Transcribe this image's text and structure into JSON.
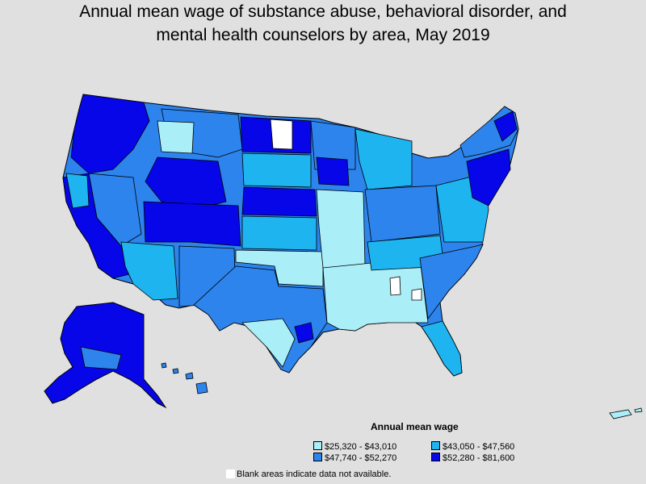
{
  "title_line1": "Annual mean wage of substance abuse, behavioral disorder, and",
  "title_line2": "mental health counselors by area, May 2019",
  "legend": {
    "title": "Annual mean wage",
    "items": [
      {
        "label": "$25,320 - $43,010",
        "color": "#aaeef8"
      },
      {
        "label": "$43,050 - $47,560",
        "color": "#1eb4f0"
      },
      {
        "label": "$47,740 - $52,270",
        "color": "#2c84ec"
      },
      {
        "label": "$52,280 - $81,600",
        "color": "#0606e8"
      }
    ]
  },
  "note": {
    "label": "Blank areas indicate data not available.",
    "color": "#ffffff"
  },
  "colors": {
    "background": "#e0e0e0",
    "border": "#000000"
  }
}
